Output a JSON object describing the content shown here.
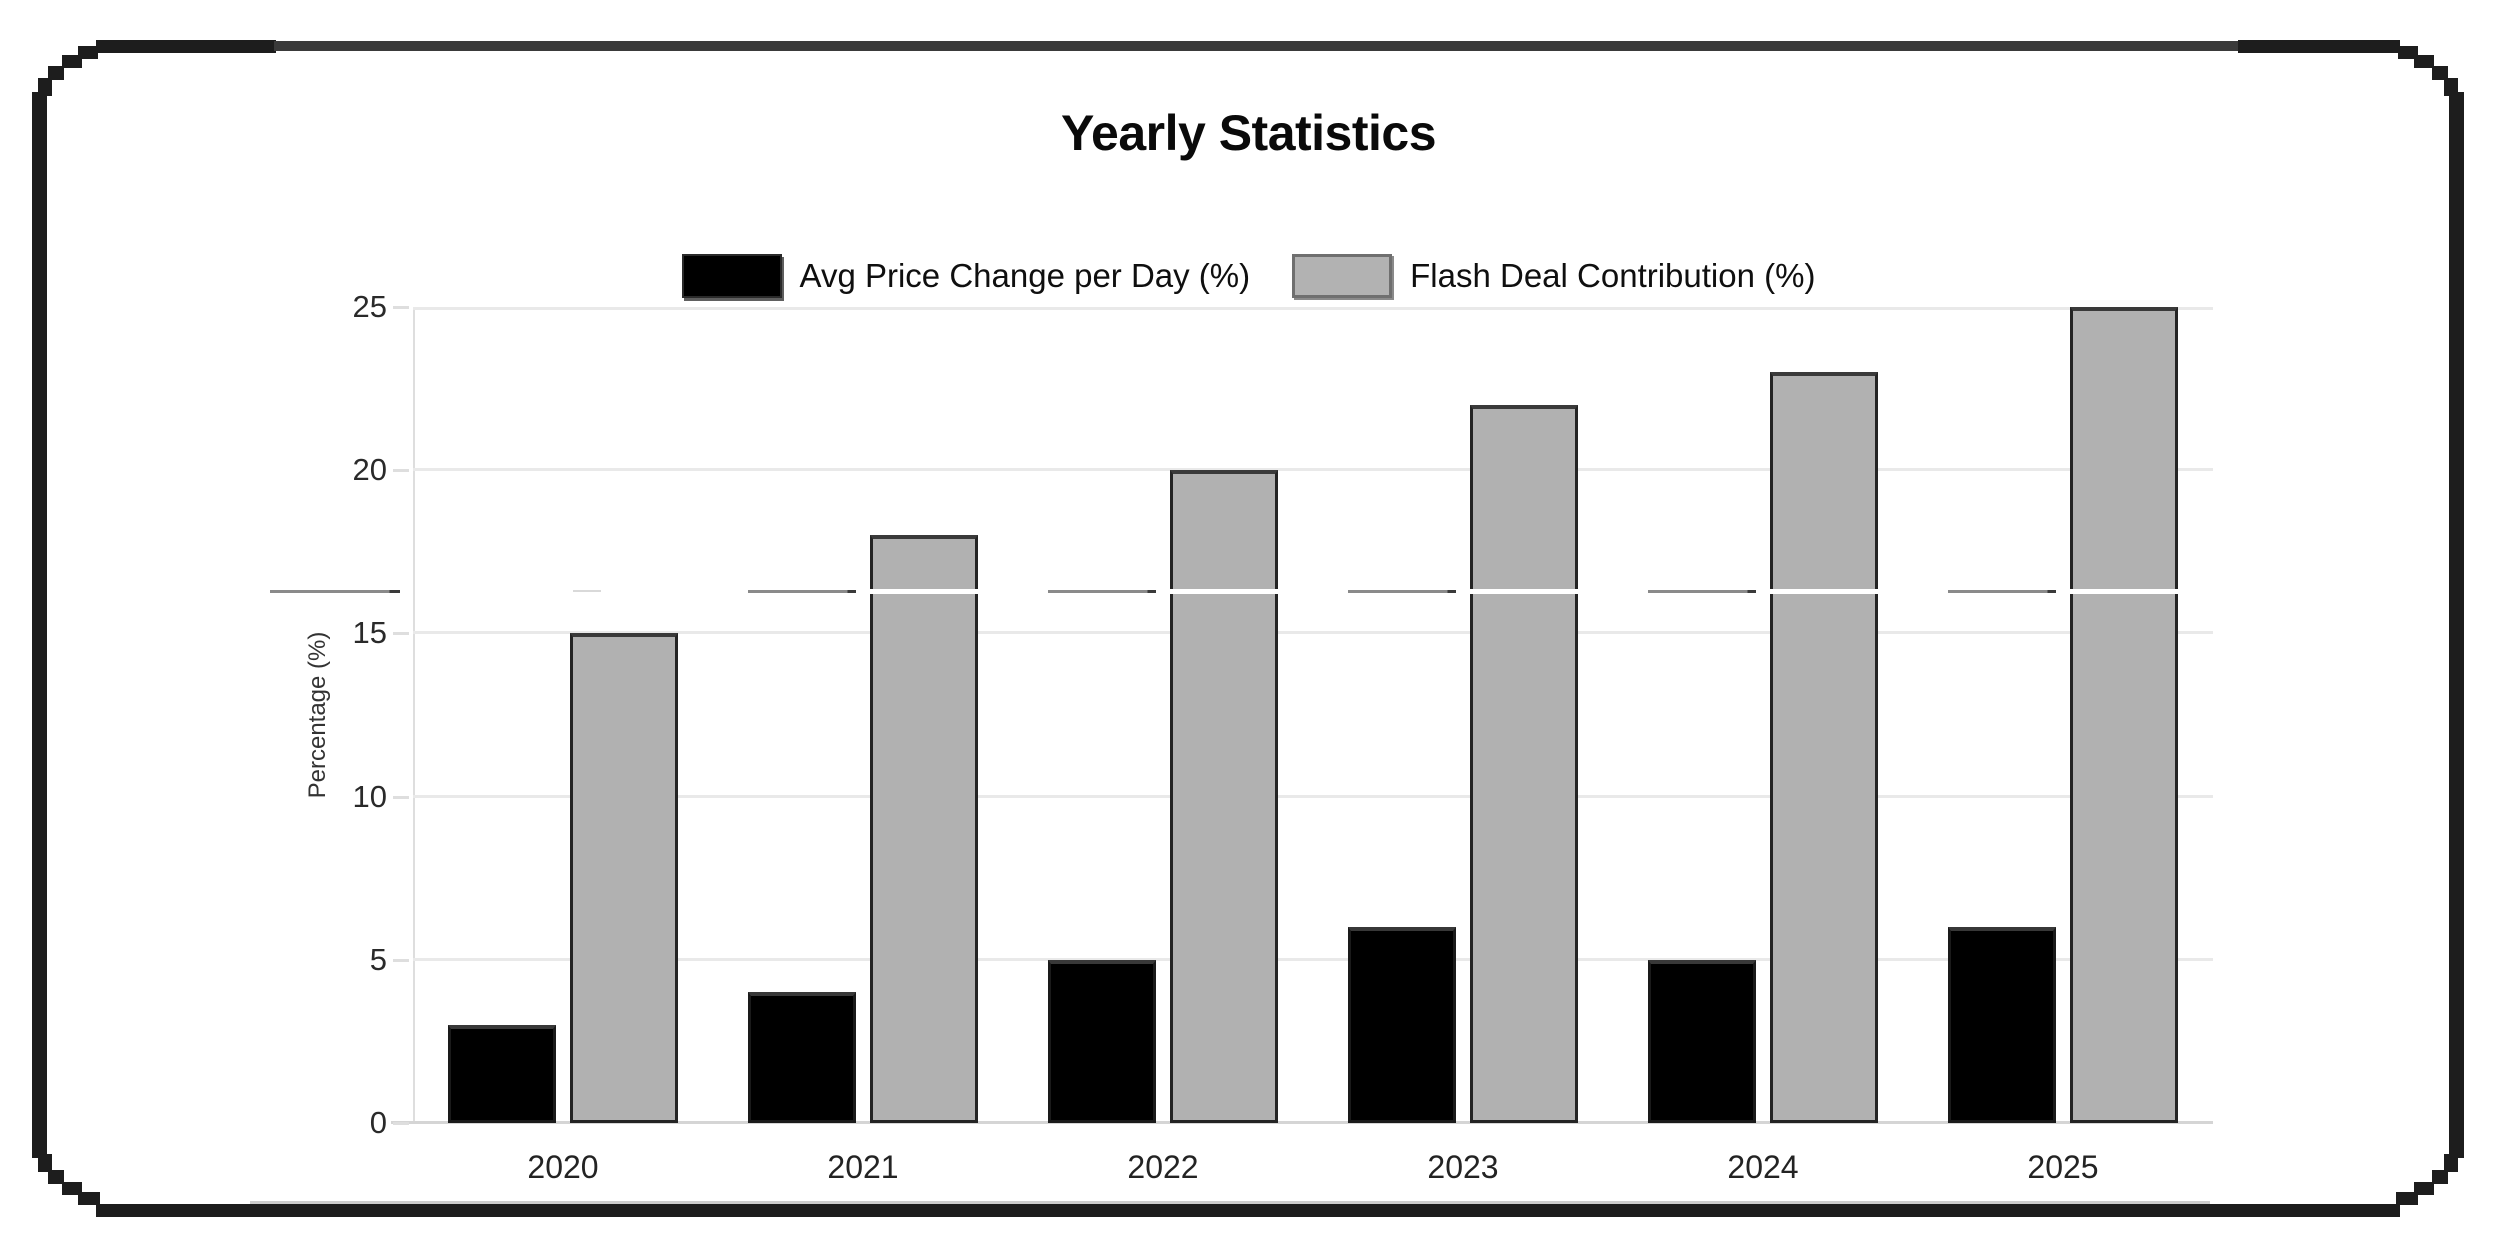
{
  "title": "Yearly Statistics",
  "legend": [
    {
      "label": "Avg Price Change per Day (%)",
      "color": "#000000"
    },
    {
      "label": "Flash Deal Contribution (%)",
      "color": "#b2b2b2"
    }
  ],
  "y_axis": {
    "label": "Percentage (%)",
    "ticks": [
      0,
      5,
      10,
      15,
      20,
      25
    ],
    "max": 25
  },
  "x_axis": {
    "categories": [
      "2020",
      "2021",
      "2022",
      "2023",
      "2024",
      "2025"
    ]
  },
  "chart_data": {
    "type": "bar",
    "categories": [
      "2020",
      "2021",
      "2022",
      "2023",
      "2024",
      "2025"
    ],
    "series": [
      {
        "name": "Avg Price Change per Day (%)",
        "color": "#000000",
        "values": [
          3,
          4,
          5,
          6,
          5,
          6
        ]
      },
      {
        "name": "Flash Deal Contribution (%)",
        "color": "#b2b2b2",
        "values": [
          15,
          18,
          20,
          22,
          23,
          25
        ]
      }
    ],
    "title": "Yearly Statistics",
    "xlabel": "",
    "ylabel": "Percentage (%)",
    "ylim": [
      0,
      25
    ],
    "grid": true,
    "legend_position": "top",
    "annotation_line": {
      "y": 16.3,
      "style": "broken-artifact"
    }
  }
}
